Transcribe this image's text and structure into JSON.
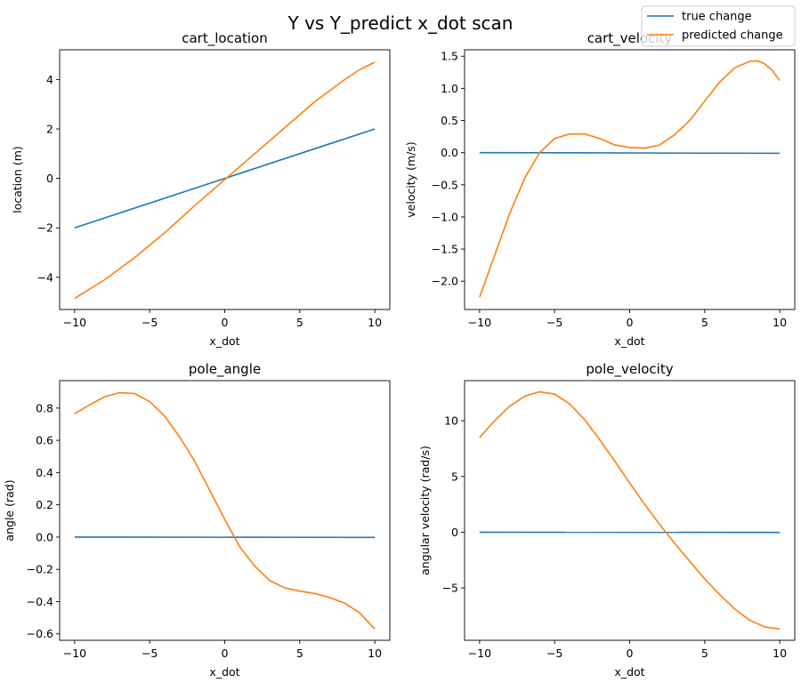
{
  "figure": {
    "suptitle": "Y vs Y_predict x_dot scan"
  },
  "legend": {
    "entries": [
      {
        "label": "true change",
        "color": "#1f77b4"
      },
      {
        "label": "predicted change",
        "color": "#ff7f0e"
      }
    ]
  },
  "chart_data": [
    {
      "type": "line",
      "title": "cart_location",
      "xlabel": "x_dot",
      "ylabel": "location (m)",
      "xlim": [
        -11,
        11
      ],
      "ylim": [
        -5.3,
        5.2
      ],
      "xticks": [
        -10,
        -5,
        0,
        5,
        10
      ],
      "yticks": [
        -4,
        -2,
        0,
        2,
        4
      ],
      "xtick_labels": [
        "−10",
        "−5",
        "0",
        "5",
        "10"
      ],
      "ytick_labels": [
        "−4",
        "−2",
        "0",
        "2",
        "4"
      ],
      "series": [
        {
          "name": "true change",
          "color": "#1f77b4",
          "x": [
            -10,
            10
          ],
          "y": [
            -2,
            2
          ]
        },
        {
          "name": "predicted change",
          "color": "#ff7f0e",
          "x": [
            -10,
            -8,
            -6,
            -4,
            -2,
            0,
            2,
            4,
            6,
            8,
            9,
            10
          ],
          "y": [
            -4.85,
            -4.1,
            -3.2,
            -2.2,
            -1.1,
            -0.05,
            1.0,
            2.05,
            3.1,
            4.0,
            4.4,
            4.7
          ]
        }
      ]
    },
    {
      "type": "line",
      "title": "cart_velocity",
      "xlabel": "x_dot",
      "ylabel": "velocity (m/s)",
      "xlim": [
        -11,
        11
      ],
      "ylim": [
        -2.44,
        1.6
      ],
      "xticks": [
        -10,
        -5,
        0,
        5,
        10
      ],
      "yticks": [
        -2.0,
        -1.5,
        -1.0,
        -0.5,
        0.0,
        0.5,
        1.0,
        1.5
      ],
      "xtick_labels": [
        "−10",
        "−5",
        "0",
        "5",
        "10"
      ],
      "ytick_labels": [
        "−2.0",
        "−1.5",
        "−1.0",
        "−0.5",
        "0.0",
        "0.5",
        "1.0",
        "1.5"
      ],
      "series": [
        {
          "name": "true change",
          "color": "#1f77b4",
          "x": [
            -10,
            10
          ],
          "y": [
            0.0,
            -0.01
          ]
        },
        {
          "name": "predicted change",
          "color": "#ff7f0e",
          "x": [
            -10,
            -9,
            -8,
            -7,
            -6,
            -5,
            -4,
            -3,
            -2,
            -1,
            0,
            1,
            2,
            3,
            4,
            5,
            6,
            7,
            8,
            8.5,
            9,
            9.5,
            10
          ],
          "y": [
            -2.25,
            -1.6,
            -0.95,
            -0.4,
            0.0,
            0.22,
            0.29,
            0.29,
            0.22,
            0.12,
            0.08,
            0.07,
            0.12,
            0.28,
            0.5,
            0.8,
            1.1,
            1.32,
            1.42,
            1.43,
            1.38,
            1.28,
            1.12
          ]
        }
      ]
    },
    {
      "type": "line",
      "title": "pole_angle",
      "xlabel": "x_dot",
      "ylabel": "angle (rad)",
      "xlim": [
        -11,
        11
      ],
      "ylim": [
        -0.64,
        0.97
      ],
      "xticks": [
        -10,
        -5,
        0,
        5,
        10
      ],
      "yticks": [
        -0.6,
        -0.4,
        -0.2,
        0.0,
        0.2,
        0.4,
        0.6,
        0.8
      ],
      "xtick_labels": [
        "−10",
        "−5",
        "0",
        "5",
        "10"
      ],
      "ytick_labels": [
        "−0.6",
        "−0.4",
        "−0.2",
        "0.0",
        "0.2",
        "0.4",
        "0.6",
        "0.8"
      ],
      "series": [
        {
          "name": "true change",
          "color": "#1f77b4",
          "x": [
            -10,
            10
          ],
          "y": [
            0.0,
            -0.002
          ]
        },
        {
          "name": "predicted change",
          "color": "#ff7f0e",
          "x": [
            -10,
            -9,
            -8,
            -7,
            -6,
            -5,
            -4,
            -3,
            -2,
            -1,
            0,
            1,
            2,
            3,
            4,
            5,
            6,
            7,
            8,
            9,
            10
          ],
          "y": [
            0.765,
            0.82,
            0.87,
            0.895,
            0.89,
            0.84,
            0.75,
            0.62,
            0.47,
            0.29,
            0.11,
            -0.06,
            -0.18,
            -0.27,
            -0.315,
            -0.335,
            -0.35,
            -0.375,
            -0.41,
            -0.47,
            -0.57
          ]
        }
      ]
    },
    {
      "type": "line",
      "title": "pole_velocity",
      "xlabel": "x_dot",
      "ylabel": "angular velocity (rad/s)",
      "xlim": [
        -11,
        11
      ],
      "ylim": [
        -9.7,
        13.6
      ],
      "xticks": [
        -10,
        -5,
        0,
        5,
        10
      ],
      "yticks": [
        -5,
        0,
        5,
        10
      ],
      "xtick_labels": [
        "−10",
        "−5",
        "0",
        "5",
        "10"
      ],
      "ytick_labels": [
        "−5",
        "0",
        "5",
        "10"
      ],
      "series": [
        {
          "name": "true change",
          "color": "#1f77b4",
          "x": [
            -10,
            10
          ],
          "y": [
            0.0,
            -0.02
          ]
        },
        {
          "name": "predicted change",
          "color": "#ff7f0e",
          "x": [
            -10,
            -9,
            -8,
            -7,
            -6,
            -5,
            -4,
            -3,
            -2,
            -1,
            0,
            1,
            2,
            3,
            4,
            5,
            6,
            7,
            8,
            9,
            10
          ],
          "y": [
            8.5,
            10.0,
            11.3,
            12.2,
            12.6,
            12.4,
            11.5,
            10.1,
            8.3,
            6.4,
            4.4,
            2.5,
            0.7,
            -1.0,
            -2.6,
            -4.2,
            -5.6,
            -6.9,
            -7.9,
            -8.5,
            -8.7
          ]
        }
      ]
    }
  ]
}
